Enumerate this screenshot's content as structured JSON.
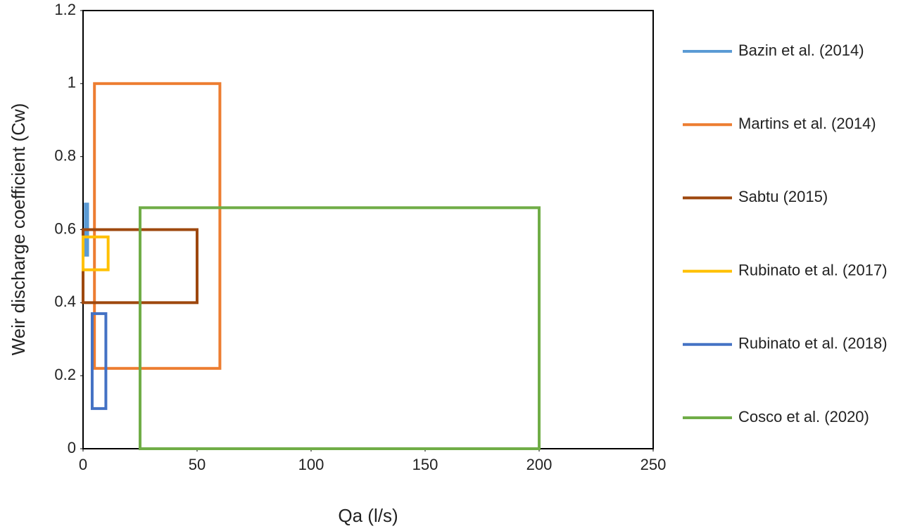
{
  "chart_data": {
    "type": "range-box",
    "x_label": "Qa (l/s)",
    "y_label": "Weir discharge coefficient (Cw)",
    "xlim": [
      0,
      250
    ],
    "xticks": [
      0,
      50,
      100,
      150,
      200,
      250
    ],
    "ylim": [
      0,
      1.2
    ],
    "yticks": [
      0,
      0.2,
      0.4,
      0.6,
      0.8,
      1,
      1.2
    ],
    "grid": false,
    "legend": "right",
    "series": [
      {
        "name": "Bazin et al. (2014)",
        "color": "#5b9bd5",
        "x": [
          1,
          2
        ],
        "y": [
          0.53,
          0.67
        ]
      },
      {
        "name": "Martins et al. (2014)",
        "color": "#ed7d31",
        "x": [
          5,
          60
        ],
        "y": [
          0.22,
          1
        ]
      },
      {
        "name": "Sabtu (2015)",
        "color": "#9e480e",
        "x": [
          0,
          50
        ],
        "y": [
          0.4,
          0.6
        ]
      },
      {
        "name": "Rubinato et al. (2017)",
        "color": "#ffc000",
        "x": [
          0,
          11
        ],
        "y": [
          0.49,
          0.58
        ]
      },
      {
        "name": "Rubinato et al. (2018)",
        "color": "#4472c4",
        "x": [
          4,
          10
        ],
        "y": [
          0.11,
          0.37
        ]
      },
      {
        "name": "Cosco et al. (2020)",
        "color": "#70ad47",
        "x": [
          25,
          200
        ],
        "y": [
          0,
          0.66
        ]
      }
    ]
  }
}
